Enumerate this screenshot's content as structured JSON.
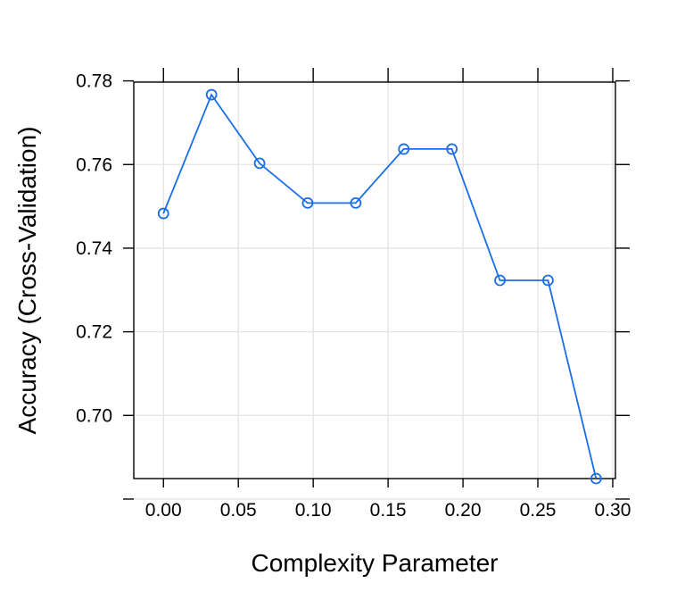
{
  "chart_data": {
    "type": "line",
    "title": "",
    "xlabel": "Complexity Parameter",
    "ylabel": "Accuracy (Cross-Validation)",
    "xlim": [
      -0.0198,
      0.3018
    ],
    "ylim": [
      0.6849,
      0.7797
    ],
    "x_ticks": [
      0.0,
      0.05,
      0.1,
      0.15,
      0.2,
      0.25,
      0.3
    ],
    "x_tick_labels": [
      "0.00",
      "0.05",
      "0.10",
      "0.15",
      "0.20",
      "0.25",
      "0.30"
    ],
    "y_ticks": [
      0.7,
      0.72,
      0.74,
      0.76,
      0.78
    ],
    "y_tick_labels": [
      "0.70",
      "0.72",
      "0.74",
      "0.76",
      "0.78"
    ],
    "grid": true,
    "series": [
      {
        "color": "#1a6ee8",
        "marker": "open-circle",
        "x": [
          0.0,
          0.0321,
          0.0642,
          0.0963,
          0.1284,
          0.1605,
          0.1926,
          0.2247,
          0.2568,
          0.2889
        ],
        "y": [
          0.7483,
          0.7767,
          0.7603,
          0.7508,
          0.7508,
          0.7637,
          0.7637,
          0.7323,
          0.7323,
          0.6849
        ]
      }
    ],
    "colors": {
      "grid": "#e3e3e3",
      "axis": "#000000"
    }
  }
}
